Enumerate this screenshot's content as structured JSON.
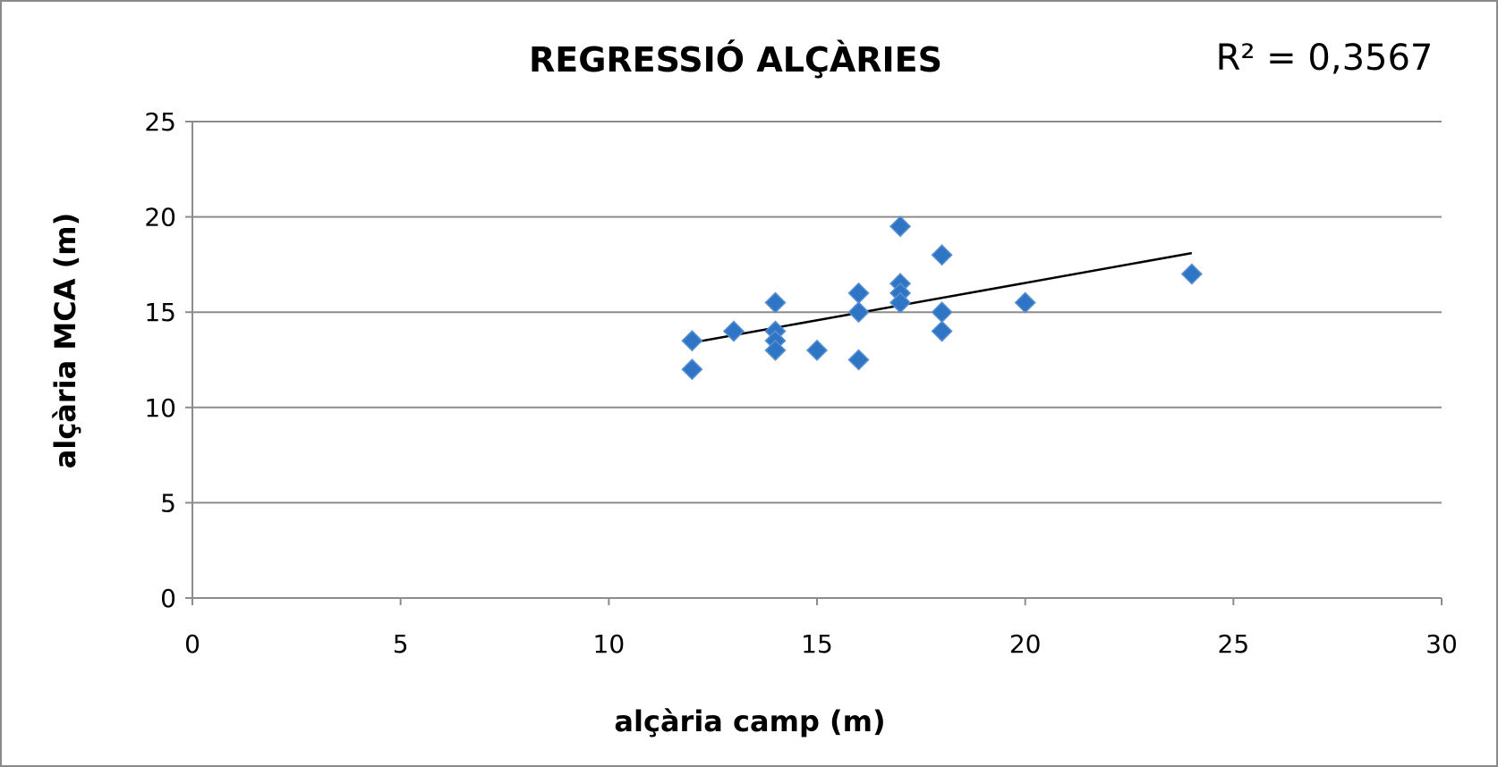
{
  "chart_data": {
    "type": "scatter",
    "title": "REGRESSIÓ ALÇÀRIES",
    "annotation": "R² = 0,3567",
    "xlabel": "alçària camp (m)",
    "ylabel": "alçària MCA (m)",
    "xlim": [
      0,
      30
    ],
    "ylim": [
      0,
      25
    ],
    "x_ticks": [
      0,
      5,
      10,
      15,
      20,
      25,
      30
    ],
    "y_ticks": [
      0,
      5,
      10,
      15,
      20,
      25
    ],
    "grid": "horizontal",
    "legend": "none",
    "marker": "diamond",
    "marker_color": "#2E75C6",
    "points": [
      {
        "x": 12,
        "y": 13.5
      },
      {
        "x": 12,
        "y": 12
      },
      {
        "x": 13,
        "y": 14
      },
      {
        "x": 14,
        "y": 15.5
      },
      {
        "x": 14,
        "y": 14
      },
      {
        "x": 14,
        "y": 13.5
      },
      {
        "x": 14,
        "y": 13
      },
      {
        "x": 15,
        "y": 13
      },
      {
        "x": 16,
        "y": 16
      },
      {
        "x": 16,
        "y": 15
      },
      {
        "x": 16,
        "y": 12.5
      },
      {
        "x": 17,
        "y": 19.5
      },
      {
        "x": 17,
        "y": 16.5
      },
      {
        "x": 17,
        "y": 16
      },
      {
        "x": 17,
        "y": 15.5
      },
      {
        "x": 18,
        "y": 18
      },
      {
        "x": 18,
        "y": 15
      },
      {
        "x": 18,
        "y": 14
      },
      {
        "x": 20,
        "y": 15.5
      },
      {
        "x": 24,
        "y": 17
      }
    ],
    "trendline": {
      "type": "linear",
      "x": [
        12,
        24
      ],
      "y": [
        13.4,
        18.1
      ],
      "color": "#000000"
    }
  }
}
